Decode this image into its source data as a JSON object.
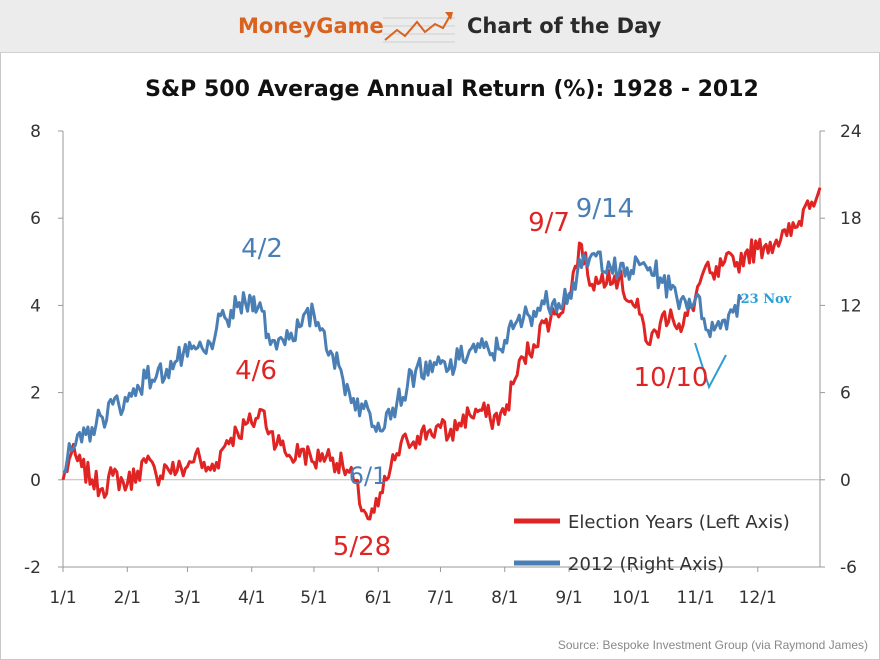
{
  "header": {
    "brand": "MoneyGame",
    "section": "Chart of the Day",
    "logo_icon": "rising-chart-icon",
    "brand_color": "#d9621f"
  },
  "source": "Source: Bespoke Investment Group (via Raymond James)",
  "chart_data": {
    "type": "line",
    "title": "S&P 500 Average Annual Return (%): 1928 - 2012",
    "x_ticks": [
      "1/1",
      "2/1",
      "3/1",
      "4/1",
      "5/1",
      "6/1",
      "7/1",
      "8/1",
      "9/1",
      "10/1",
      "11/1",
      "12/1"
    ],
    "y_left": {
      "lim": [
        -2,
        8
      ],
      "ticks": [
        -2,
        0,
        2,
        4,
        6,
        8
      ]
    },
    "y_right": {
      "lim": [
        -6,
        24
      ],
      "ticks": [
        -6,
        0,
        6,
        12,
        18,
        24
      ]
    },
    "grid": false,
    "legend_position": "bottom-right",
    "series": [
      {
        "name": "Election Years (Left Axis)",
        "axis": "left",
        "color": "#e02424",
        "points": [
          [
            "1/1",
            0.0
          ],
          [
            "1/5",
            0.6
          ],
          [
            "1/10",
            0.3
          ],
          [
            "1/15",
            0.0
          ],
          [
            "1/20",
            -0.2
          ],
          [
            "1/25",
            0.1
          ],
          [
            "2/1",
            -0.1
          ],
          [
            "2/6",
            0.2
          ],
          [
            "2/10",
            0.4
          ],
          [
            "2/15",
            0.1
          ],
          [
            "2/20",
            0.3
          ],
          [
            "2/25",
            0.2
          ],
          [
            "3/1",
            0.3
          ],
          [
            "3/5",
            0.6
          ],
          [
            "3/10",
            0.2
          ],
          [
            "3/15",
            0.4
          ],
          [
            "3/20",
            0.9
          ],
          [
            "3/25",
            1.1
          ],
          [
            "4/1",
            1.3
          ],
          [
            "4/6",
            1.6
          ],
          [
            "4/10",
            1.1
          ],
          [
            "4/15",
            0.8
          ],
          [
            "4/20",
            0.5
          ],
          [
            "4/25",
            0.7
          ],
          [
            "5/1",
            0.4
          ],
          [
            "5/5",
            0.6
          ],
          [
            "5/10",
            0.5
          ],
          [
            "5/15",
            0.3
          ],
          [
            "5/20",
            0.0
          ],
          [
            "5/25",
            -0.7
          ],
          [
            "5/28",
            -0.9
          ],
          [
            "6/1",
            -0.6
          ],
          [
            "6/5",
            0.0
          ],
          [
            "6/10",
            0.6
          ],
          [
            "6/15",
            0.9
          ],
          [
            "6/20",
            1.0
          ],
          [
            "6/25",
            1.1
          ],
          [
            "7/1",
            1.2
          ],
          [
            "7/5",
            1.0
          ],
          [
            "7/10",
            1.3
          ],
          [
            "7/15",
            1.5
          ],
          [
            "7/20",
            1.6
          ],
          [
            "7/25",
            1.4
          ],
          [
            "8/1",
            1.5
          ],
          [
            "8/5",
            2.2
          ],
          [
            "8/10",
            2.8
          ],
          [
            "8/15",
            3.1
          ],
          [
            "8/20",
            3.6
          ],
          [
            "8/25",
            3.8
          ],
          [
            "9/1",
            4.2
          ],
          [
            "9/4",
            4.9
          ],
          [
            "9/7",
            5.4
          ],
          [
            "9/10",
            4.7
          ],
          [
            "9/15",
            4.5
          ],
          [
            "9/20",
            4.8
          ],
          [
            "9/25",
            4.6
          ],
          [
            "10/1",
            4.1
          ],
          [
            "10/5",
            3.8
          ],
          [
            "10/10",
            3.1
          ],
          [
            "10/15",
            3.6
          ],
          [
            "10/20",
            3.9
          ],
          [
            "10/25",
            3.4
          ],
          [
            "11/1",
            4.2
          ],
          [
            "11/5",
            4.8
          ],
          [
            "11/10",
            4.6
          ],
          [
            "11/15",
            5.0
          ],
          [
            "11/20",
            4.9
          ],
          [
            "11/25",
            5.2
          ],
          [
            "12/1",
            5.3
          ],
          [
            "12/5",
            5.4
          ],
          [
            "12/10",
            5.5
          ],
          [
            "12/15",
            5.6
          ],
          [
            "12/20",
            5.8
          ],
          [
            "12/25",
            6.4
          ],
          [
            "12/31",
            6.7
          ]
        ]
      },
      {
        "name": "2012 (Right Axis)",
        "axis": "right",
        "color": "#4a7fb5",
        "points": [
          [
            "1/1",
            0.5
          ],
          [
            "1/5",
            2.0
          ],
          [
            "1/10",
            2.6
          ],
          [
            "1/15",
            3.6
          ],
          [
            "1/20",
            4.3
          ],
          [
            "1/25",
            5.2
          ],
          [
            "2/1",
            5.4
          ],
          [
            "2/6",
            6.5
          ],
          [
            "2/10",
            7.0
          ],
          [
            "2/15",
            7.1
          ],
          [
            "2/20",
            7.6
          ],
          [
            "2/25",
            8.2
          ],
          [
            "3/1",
            8.5
          ],
          [
            "3/5",
            9.0
          ],
          [
            "3/10",
            8.7
          ],
          [
            "3/15",
            10.4
          ],
          [
            "3/20",
            11.0
          ],
          [
            "3/25",
            11.9
          ],
          [
            "4/1",
            12.3
          ],
          [
            "4/2",
            12.6
          ],
          [
            "4/6",
            11.6
          ],
          [
            "4/10",
            9.3
          ],
          [
            "4/15",
            9.8
          ],
          [
            "4/20",
            10.1
          ],
          [
            "4/25",
            10.6
          ],
          [
            "5/1",
            11.4
          ],
          [
            "5/5",
            10.4
          ],
          [
            "5/10",
            8.6
          ],
          [
            "5/15",
            6.9
          ],
          [
            "5/20",
            5.6
          ],
          [
            "5/25",
            4.9
          ],
          [
            "6/1",
            3.9
          ],
          [
            "6/5",
            4.6
          ],
          [
            "6/10",
            5.3
          ],
          [
            "6/15",
            6.4
          ],
          [
            "6/20",
            7.9
          ],
          [
            "6/25",
            7.2
          ],
          [
            "7/1",
            8.0
          ],
          [
            "7/5",
            7.6
          ],
          [
            "7/10",
            8.3
          ],
          [
            "7/15",
            8.9
          ],
          [
            "7/20",
            9.1
          ],
          [
            "7/25",
            8.6
          ],
          [
            "8/1",
            9.6
          ],
          [
            "8/5",
            10.4
          ],
          [
            "8/10",
            11.1
          ],
          [
            "8/15",
            11.6
          ],
          [
            "8/20",
            12.1
          ],
          [
            "8/25",
            12.4
          ],
          [
            "9/1",
            12.8
          ],
          [
            "9/7",
            14.6
          ],
          [
            "9/14",
            15.4
          ],
          [
            "9/20",
            15.0
          ],
          [
            "9/25",
            14.1
          ],
          [
            "10/1",
            14.4
          ],
          [
            "10/5",
            14.8
          ],
          [
            "10/10",
            14.6
          ],
          [
            "10/15",
            13.9
          ],
          [
            "10/20",
            13.1
          ],
          [
            "10/25",
            12.4
          ],
          [
            "11/1",
            12.5
          ],
          [
            "11/5",
            11.1
          ],
          [
            "11/10",
            10.3
          ],
          [
            "11/15",
            11.0
          ],
          [
            "11/20",
            12.0
          ],
          [
            "11/23",
            12.4
          ]
        ]
      }
    ],
    "annotations": [
      {
        "text": "4/2",
        "color": "#4a7fb5"
      },
      {
        "text": "4/6",
        "color": "#e02424"
      },
      {
        "text": "6/1",
        "color": "#4a7fb5"
      },
      {
        "text": "5/28",
        "color": "#e02424"
      },
      {
        "text": "9/7",
        "color": "#e02424"
      },
      {
        "text": "9/14",
        "color": "#4a7fb5"
      },
      {
        "text": "10/10",
        "color": "#e02424"
      },
      {
        "text": "23 Nov",
        "color": "#2a9fd6"
      }
    ]
  }
}
